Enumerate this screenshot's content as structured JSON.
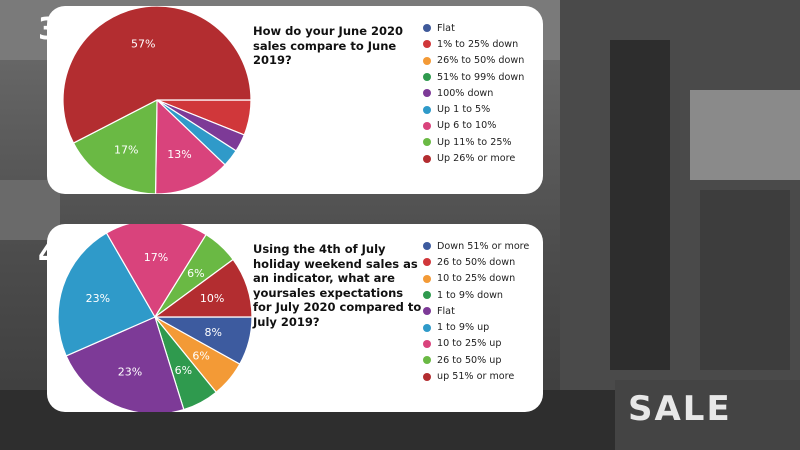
{
  "chart_data": [
    {
      "type": "pie",
      "number": "3",
      "title": "How do your June 2020 sales compare to June 2019?",
      "legend_position": "right",
      "categories": [
        "Flat",
        "1% to 25% down",
        "26% to 50% down",
        "51% to 99% down",
        "100% down",
        "Up 1 to 5%",
        "Up 6 to 10%",
        "Up 11% to 25%",
        "Up 26% or more"
      ],
      "values": [
        0,
        6,
        0,
        0,
        3,
        3,
        13,
        17,
        57
      ],
      "colors": [
        "#3f5a9a",
        "#d0373a",
        "#f39a36",
        "#2f9a4e",
        "#7d3a97",
        "#2f9ac9",
        "#d9437c",
        "#6ab944",
        "#b32d30"
      ],
      "data_labels": [
        "",
        "",
        "",
        "",
        "",
        "",
        "13%",
        "17%",
        "57%"
      ]
    },
    {
      "type": "pie",
      "number": "4",
      "title": "Using the 4th of July holiday weekend sales as an indicator, what are yoursales expectations for July 2020 compared to July 2019?",
      "legend_position": "right",
      "categories": [
        "Down 51% or more",
        "26 to 50% down",
        "10 to 25% down",
        "1 to 9% down",
        "Flat",
        "1 to 9% up",
        "10 to 25% up",
        "26 to 50% up",
        "up 51% or more"
      ],
      "values": [
        8,
        0,
        6,
        6,
        23,
        23,
        17,
        6,
        10
      ],
      "colors": [
        "#3d5b9f",
        "#d0373a",
        "#f39a36",
        "#2f9a4e",
        "#7d3a97",
        "#2f9ac9",
        "#d9437c",
        "#6ab944",
        "#b32d30"
      ],
      "data_labels": [
        "8%",
        "",
        "6%",
        "6%",
        "23%",
        "23%",
        "17%",
        "6%",
        "10%"
      ]
    }
  ],
  "background_sign": "SALE"
}
